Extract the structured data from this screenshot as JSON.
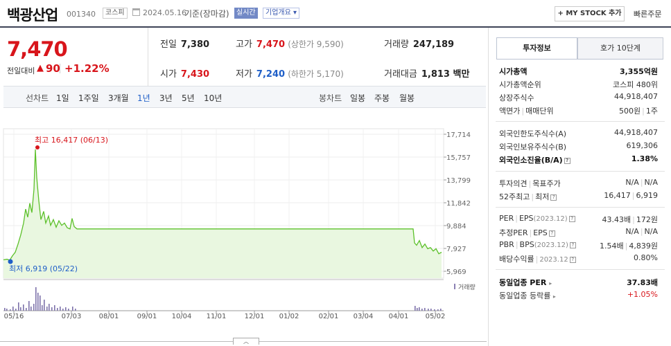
{
  "header": {
    "name": "백광산업",
    "code": "001340",
    "market": "코스피",
    "date": "2024.05.16",
    "basis": "기준(장마감)",
    "realtime": "실시간",
    "company_overview": "기업개요",
    "mystock_button": "+ MY STOCK 추가",
    "quick_order": "빠른주문"
  },
  "quote": {
    "price": "7,470",
    "change_label": "전일대비",
    "change_arrow": "▲",
    "change": "90",
    "change_pct": "+1.22%",
    "prev_label": "전일",
    "prev": "7,380",
    "open_label": "시가",
    "open": "7,430",
    "high_label": "고가",
    "high": "7,470",
    "upper_limit": "(상한가 9,590)",
    "low_label": "저가",
    "low": "7,240",
    "lower_limit": "(하한가 5,170)",
    "volume_label": "거래량",
    "volume": "247,189",
    "amount_label": "거래대금",
    "amount": "1,813 백만"
  },
  "chart_tabs": {
    "line_label": "선차트",
    "periods": [
      "1일",
      "1주일",
      "3개월",
      "1년",
      "3년",
      "5년",
      "10년"
    ],
    "active_period": "1년",
    "candle_label": "봉차트",
    "candles": [
      "일봉",
      "주봉",
      "월봉"
    ]
  },
  "chart_data": {
    "type": "area",
    "x": [
      "05/16",
      "05/22",
      "06/13",
      "07/03",
      "08/01",
      "09/01",
      "10/04",
      "11/01",
      "12/01",
      "01/02",
      "02/01",
      "03/04",
      "04/01",
      "04/15",
      "05/02",
      "05/16"
    ],
    "y": [
      6919,
      6919,
      16417,
      9600,
      9600,
      9600,
      9600,
      9600,
      9600,
      9600,
      9600,
      9600,
      9600,
      9600,
      7650,
      7470
    ],
    "xticks": [
      "05/16",
      "07/03",
      "08/01",
      "09/01",
      "10/04",
      "11/01",
      "12/01",
      "01/02",
      "02/01",
      "03/04",
      "04/01",
      "05/02"
    ],
    "yticks": [
      "17,714",
      "15,757",
      "13,799",
      "11,842",
      "9,884",
      "7,927",
      "5,969"
    ],
    "ylim": [
      5969,
      17714
    ],
    "high_label": "최고",
    "high_value": "16,417",
    "high_date": "(06/13)",
    "low_label": "최저",
    "low_value": "6,919",
    "low_date": "(05/22)",
    "volume_label": "거래량",
    "line_color": "#5cc02a",
    "fill_color": "#e9f7e0"
  },
  "panel": {
    "tab_active": "투자정보",
    "tab_other": "호가 10단계",
    "market_cap_label": "시가총액",
    "market_cap": "3,355억원",
    "cap_rank_label": "시가총액순위",
    "cap_rank": "코스피 480위",
    "shares_label": "상장주식수",
    "shares": "44,918,407",
    "par_label": "액면가",
    "unit_label": "매매단위",
    "par": "500원",
    "unit": "1주",
    "foreign_limit_label": "외국인한도주식수(A)",
    "foreign_limit": "44,918,407",
    "foreign_hold_label": "외국인보유주식수(B)",
    "foreign_hold": "619,306",
    "foreign_ratio_label": "외국인소진율(B/A)",
    "foreign_ratio": "1.38%",
    "opinion_label": "투자의견",
    "target_label": "목표주가",
    "opinion": "N/A",
    "target": "N/A",
    "week52_label": "52주최고",
    "week52_low_label": "최저",
    "week52_high": "16,417",
    "week52_low": "6,919",
    "per_label": "PER",
    "eps_label": "EPS",
    "per_period": "(2023.12)",
    "per": "43.43배",
    "eps": "172원",
    "est_per_label": "추정PER",
    "est_eps_label": "EPS",
    "est_per": "N/A",
    "est_eps": "N/A",
    "pbr_label": "PBR",
    "bps_label": "BPS",
    "pbr_period": "(2023.12)",
    "pbr": "1.54배",
    "bps": "4,839원",
    "div_label": "배당수익률",
    "div_period": "2023.12",
    "div": "0.80%",
    "sector_per_label": "동일업종 PER",
    "sector_per": "37.83배",
    "sector_chg_label": "동일업종 등락률",
    "sector_chg": "+1.05%"
  }
}
